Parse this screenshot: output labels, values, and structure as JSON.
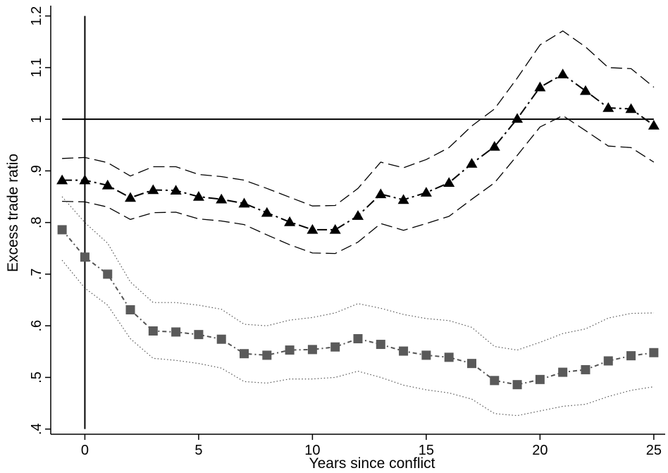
{
  "chart_data": {
    "type": "line",
    "title": "",
    "xlabel": "Years since conflict",
    "ylabel": "Excess trade ratio",
    "xlim": [
      -1.5,
      25.5
    ],
    "ylim": [
      0.39,
      1.22
    ],
    "x_ticks": [
      0,
      5,
      10,
      15,
      20,
      25
    ],
    "x_tick_labels": [
      "0",
      "5",
      "10",
      "15",
      "20",
      "25"
    ],
    "y_ticks": [
      0.4,
      0.5,
      0.6,
      0.7,
      0.8,
      0.9,
      1.0,
      1.1,
      1.2
    ],
    "y_tick_labels": [
      ".4",
      ".5",
      ".6",
      ".7",
      ".8",
      ".9",
      "1",
      "1.1",
      "1.2"
    ],
    "grid": false,
    "legend": "none",
    "x": [
      -1,
      0,
      1,
      2,
      3,
      4,
      5,
      6,
      7,
      8,
      9,
      10,
      11,
      12,
      13,
      14,
      15,
      16,
      17,
      18,
      19,
      20,
      21,
      22,
      23,
      24,
      25
    ],
    "reference_lines": [
      {
        "orientation": "horizontal",
        "value": 1.0,
        "range": [
          -1,
          25
        ]
      },
      {
        "orientation": "vertical",
        "value": 0,
        "range": [
          0.4,
          1.2
        ]
      }
    ],
    "series": [
      {
        "marker": "triangle",
        "color": "#000000",
        "values": [
          0.882,
          0.882,
          0.872,
          0.848,
          0.863,
          0.862,
          0.85,
          0.845,
          0.837,
          0.819,
          0.801,
          0.786,
          0.786,
          0.813,
          0.855,
          0.844,
          0.858,
          0.877,
          0.914,
          0.947,
          1.001,
          1.062,
          1.087,
          1.055,
          1.022,
          1.02,
          0.988
        ],
        "ci_upper": [
          0.924,
          0.926,
          0.916,
          0.89,
          0.908,
          0.908,
          0.893,
          0.889,
          0.882,
          0.866,
          0.849,
          0.832,
          0.833,
          0.866,
          0.917,
          0.906,
          0.922,
          0.945,
          0.987,
          1.02,
          1.08,
          1.144,
          1.171,
          1.14,
          1.1,
          1.098,
          1.062
        ],
        "ci_lower": [
          0.841,
          0.84,
          0.83,
          0.806,
          0.819,
          0.82,
          0.807,
          0.803,
          0.796,
          0.776,
          0.757,
          0.741,
          0.74,
          0.762,
          0.798,
          0.785,
          0.798,
          0.812,
          0.845,
          0.877,
          0.93,
          0.985,
          1.007,
          0.978,
          0.948,
          0.945,
          0.917
        ]
      },
      {
        "marker": "square",
        "color": "#5a5a5a",
        "values": [
          0.786,
          0.733,
          0.7,
          0.631,
          0.59,
          0.588,
          0.583,
          0.574,
          0.546,
          0.543,
          0.553,
          0.554,
          0.559,
          0.575,
          0.564,
          0.551,
          0.543,
          0.539,
          0.527,
          0.494,
          0.486,
          0.496,
          0.51,
          0.515,
          0.532,
          0.542,
          0.548
        ],
        "ci_upper": [
          0.85,
          0.8,
          0.76,
          0.685,
          0.645,
          0.645,
          0.64,
          0.632,
          0.603,
          0.6,
          0.611,
          0.616,
          0.625,
          0.643,
          0.634,
          0.622,
          0.614,
          0.61,
          0.597,
          0.56,
          0.553,
          0.568,
          0.585,
          0.594,
          0.615,
          0.624,
          0.625
        ],
        "ci_lower": [
          0.727,
          0.673,
          0.64,
          0.575,
          0.537,
          0.533,
          0.527,
          0.518,
          0.492,
          0.489,
          0.497,
          0.497,
          0.5,
          0.512,
          0.5,
          0.485,
          0.476,
          0.47,
          0.458,
          0.43,
          0.426,
          0.435,
          0.444,
          0.448,
          0.463,
          0.475,
          0.482
        ]
      }
    ]
  }
}
